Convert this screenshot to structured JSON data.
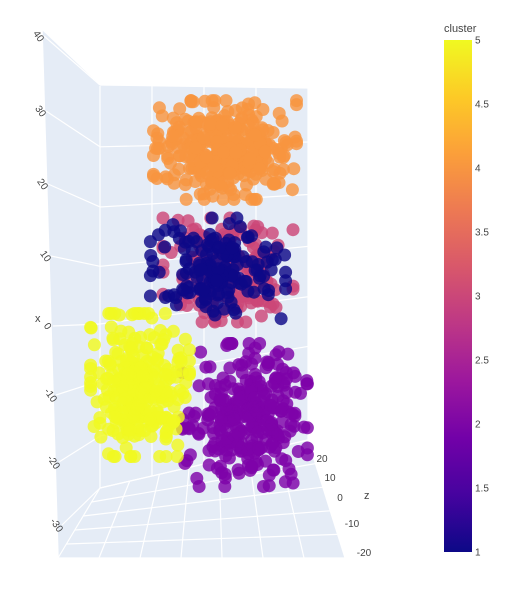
{
  "chart_data": {
    "type": "scatter",
    "dimensions": "3d",
    "axes": {
      "x": {
        "label": "x",
        "ticks": [
          -30,
          -20,
          -10,
          0,
          10,
          20,
          30,
          40
        ],
        "range": [
          -35,
          42
        ]
      },
      "z": {
        "label": "z",
        "ticks": [
          -20,
          -10,
          0,
          10,
          20
        ],
        "range": [
          -22,
          24
        ]
      }
    },
    "colorbar": {
      "title": "cluster",
      "range": [
        1,
        5
      ],
      "ticks": [
        "1",
        "1.5",
        "2",
        "2.5",
        "3",
        "3.5",
        "4",
        "4.5",
        "5"
      ],
      "colorscale": [
        "#0d0887",
        "#46039f",
        "#7201a8",
        "#9c179e",
        "#bd3786",
        "#d8576b",
        "#ed7953",
        "#fb9f3a",
        "#fdca26",
        "#f0f921"
      ]
    },
    "series": [
      {
        "cluster": 1,
        "color": "#0d0887",
        "x_center": 10,
        "z_center": 2,
        "count": 170
      },
      {
        "cluster": 2,
        "color": "#7e03a8",
        "x_center": -15,
        "z_center": -5,
        "count": 300
      },
      {
        "cluster": 3,
        "color": "#cc4778",
        "x_center": 12,
        "z_center": 5,
        "count": 200
      },
      {
        "cluster": 4,
        "color": "#f89540",
        "x_center": 28,
        "z_center": 5,
        "count": 360
      },
      {
        "cluster": 5,
        "color": "#f0f921",
        "x_center": -10,
        "z_center": 10,
        "count": 300
      }
    ],
    "grid": true,
    "legend": "colorbar-right"
  }
}
